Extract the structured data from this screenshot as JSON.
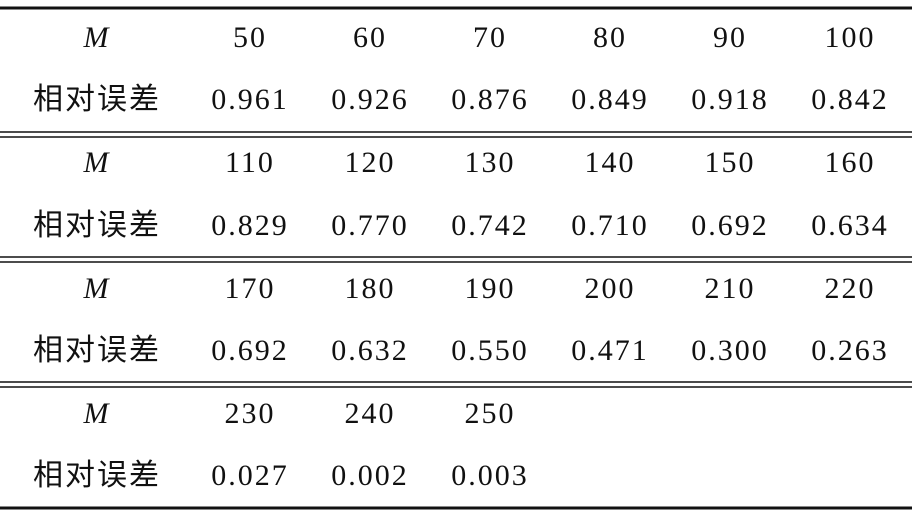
{
  "table": {
    "rows": [
      [
        "M",
        "50",
        "60",
        "70",
        "80",
        "90",
        "100"
      ],
      [
        "相对误差",
        "0.961",
        "0.926",
        "0.876",
        "0.849",
        "0.918",
        "0.842"
      ],
      [
        "M",
        "110",
        "120",
        "130",
        "140",
        "150",
        "160"
      ],
      [
        "相对误差",
        "0.829",
        "0.770",
        "0.742",
        "0.710",
        "0.692",
        "0.634"
      ],
      [
        "M",
        "170",
        "180",
        "190",
        "200",
        "210",
        "220"
      ],
      [
        "相对误差",
        "0.692",
        "0.632",
        "0.550",
        "0.471",
        "0.300",
        "0.263"
      ],
      [
        "M",
        "230",
        "240",
        "250"
      ],
      [
        "相对误差",
        "0.027",
        "0.002",
        "0.003"
      ]
    ]
  }
}
